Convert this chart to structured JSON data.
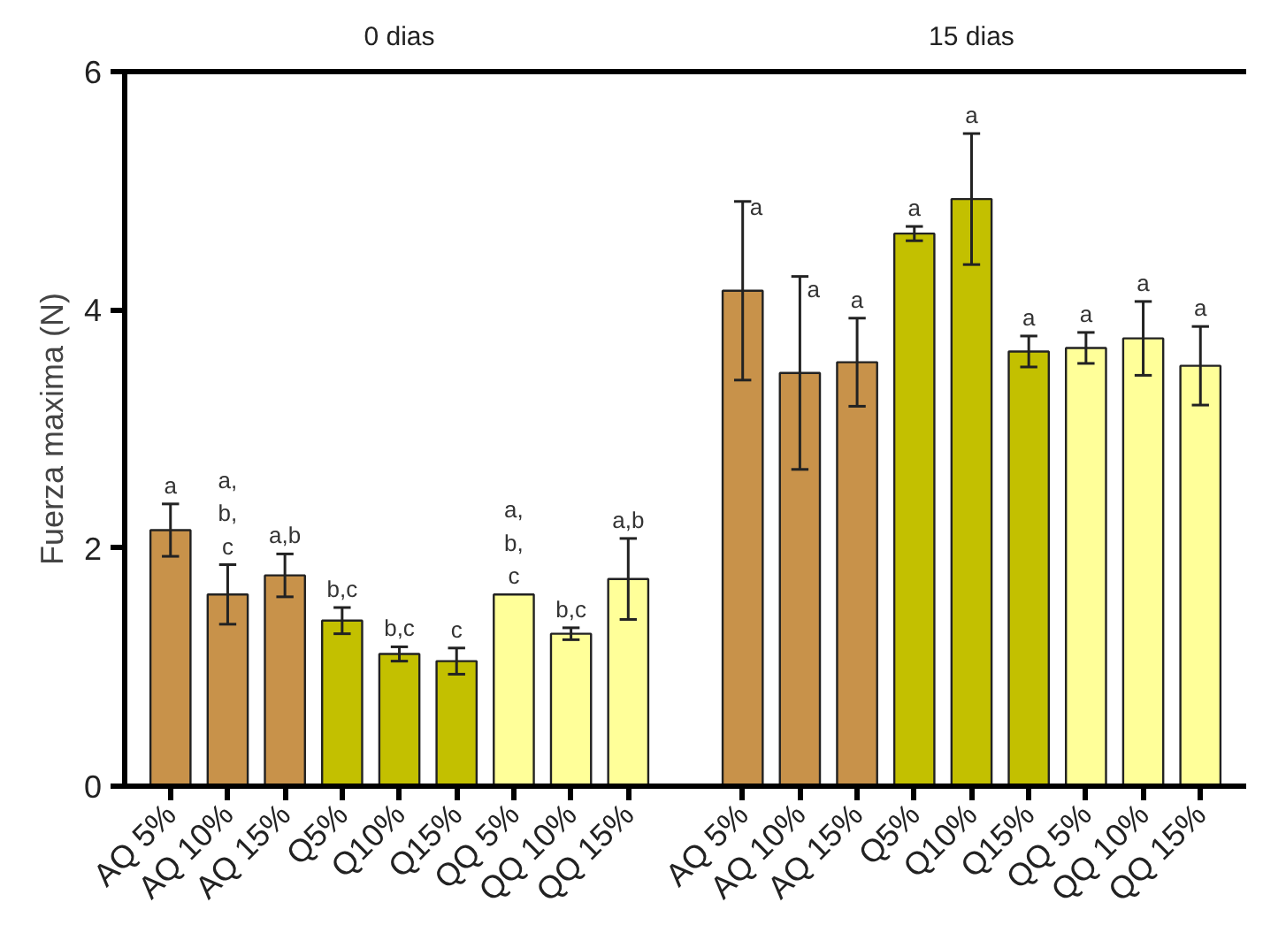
{
  "chart_data": {
    "type": "bar",
    "ylabel": "Fuerza maxima (N)",
    "categories": [
      "AQ 5%",
      "AQ 10%",
      "AQ 15%",
      "Q5%",
      "Q10%",
      "Q15%",
      "QQ 5%",
      "QQ 10%",
      "QQ 15%",
      null,
      "AQ 5%",
      "AQ 10%",
      "AQ 15%",
      "Q5%",
      "Q10%",
      "Q15%",
      "QQ 5%",
      "QQ 10%",
      "QQ 15%"
    ],
    "values": [
      2.15,
      1.61,
      1.77,
      1.39,
      1.11,
      1.05,
      1.61,
      1.28,
      1.74,
      null,
      4.16,
      3.47,
      3.56,
      4.64,
      4.93,
      3.65,
      3.68,
      3.76,
      3.53
    ],
    "errors": [
      0.22,
      0.25,
      0.18,
      0.11,
      0.06,
      0.11,
      null,
      0.05,
      0.34,
      null,
      0.75,
      0.81,
      0.37,
      0.06,
      0.55,
      0.13,
      0.13,
      0.31,
      0.33
    ],
    "colors": [
      "#c8924a",
      "#c8924a",
      "#c8924a",
      "#c3c000",
      "#c3c000",
      "#c3c000",
      "#ffff99",
      "#ffff99",
      "#ffff99",
      "#ffffff",
      "#c8924a",
      "#c8924a",
      "#c8924a",
      "#c3c000",
      "#c3c000",
      "#c3c000",
      "#ffff99",
      "#ffff99",
      "#ffff99"
    ],
    "value_labels": [
      "a",
      "a,\nb,\nc",
      "a,b",
      "b,c",
      "b,c",
      "c",
      "a,\nb,\nc",
      "b,c",
      "a,b",
      null,
      "a",
      "a",
      "a",
      "a",
      "a",
      "a",
      "a",
      "a",
      "a"
    ],
    "annotations": [
      "0 dias",
      "15 dias"
    ],
    "ylim": [
      0,
      6
    ],
    "yticks": [
      0,
      2,
      4,
      6
    ],
    "grid": false
  }
}
